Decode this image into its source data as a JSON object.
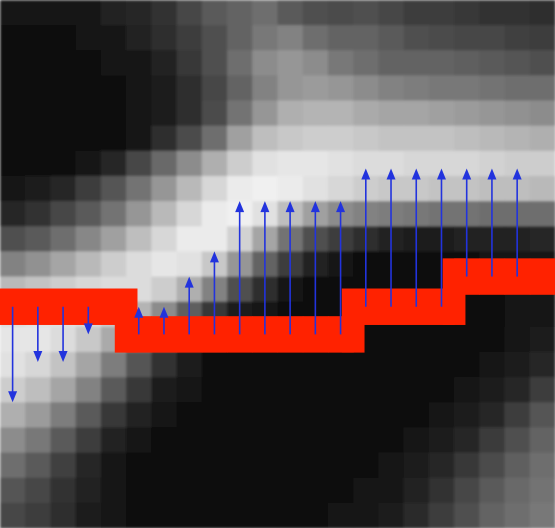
{
  "figure": {
    "description_hidden": false,
    "colors": {
      "boundary": "#ff2200",
      "arrow": "#2233dd",
      "background": "#ffffff"
    },
    "grid": {
      "cols": 22,
      "rows": 21,
      "intensities": [
        [
          20,
          20,
          20,
          25,
          35,
          40,
          50,
          70,
          90,
          100,
          110,
          90,
          80,
          75,
          80,
          70,
          60,
          60,
          55,
          50,
          50,
          45
        ],
        [
          15,
          15,
          15,
          20,
          25,
          35,
          45,
          60,
          80,
          100,
          120,
          130,
          110,
          100,
          100,
          90,
          80,
          75,
          70,
          70,
          65,
          60
        ],
        [
          10,
          10,
          10,
          15,
          20,
          25,
          35,
          55,
          80,
          110,
          140,
          150,
          140,
          120,
          110,
          100,
          100,
          100,
          95,
          90,
          85,
          80
        ],
        [
          10,
          10,
          10,
          10,
          15,
          20,
          30,
          45,
          70,
          100,
          130,
          150,
          155,
          150,
          140,
          130,
          125,
          120,
          120,
          115,
          110,
          110
        ],
        [
          8,
          8,
          8,
          10,
          15,
          20,
          30,
          45,
          75,
          115,
          150,
          175,
          180,
          180,
          170,
          165,
          165,
          160,
          155,
          150,
          145,
          140
        ],
        [
          8,
          8,
          8,
          10,
          15,
          25,
          45,
          75,
          110,
          160,
          190,
          200,
          205,
          205,
          200,
          195,
          195,
          195,
          190,
          185,
          180,
          175
        ],
        [
          10,
          10,
          15,
          25,
          40,
          70,
          105,
          140,
          175,
          205,
          225,
          230,
          230,
          225,
          220,
          220,
          215,
          215,
          215,
          210,
          205,
          205
        ],
        [
          25,
          30,
          40,
          60,
          85,
          115,
          150,
          185,
          215,
          235,
          240,
          235,
          225,
          215,
          205,
          200,
          200,
          195,
          195,
          190,
          190,
          185
        ],
        [
          40,
          50,
          70,
          90,
          115,
          150,
          185,
          215,
          235,
          240,
          225,
          190,
          160,
          140,
          130,
          125,
          120,
          115,
          115,
          110,
          110,
          110
        ],
        [
          80,
          90,
          110,
          135,
          160,
          190,
          215,
          235,
          235,
          210,
          165,
          115,
          80,
          60,
          45,
          35,
          30,
          30,
          35,
          35,
          35,
          40
        ],
        [
          130,
          145,
          165,
          185,
          205,
          220,
          230,
          225,
          200,
          150,
          100,
          60,
          35,
          20,
          12,
          10,
          10,
          12,
          15,
          18,
          20,
          25
        ],
        [
          185,
          195,
          205,
          215,
          220,
          220,
          205,
          175,
          130,
          80,
          45,
          25,
          15,
          10,
          8,
          8,
          8,
          10,
          12,
          15,
          18,
          22
        ],
        [
          220,
          225,
          225,
          220,
          205,
          180,
          140,
          95,
          55,
          30,
          18,
          12,
          10,
          8,
          8,
          8,
          8,
          10,
          12,
          15,
          18,
          22
        ],
        [
          230,
          230,
          220,
          200,
          170,
          130,
          85,
          50,
          28,
          16,
          12,
          10,
          8,
          8,
          8,
          8,
          8,
          10,
          12,
          15,
          20,
          28
        ],
        [
          225,
          215,
          195,
          165,
          125,
          85,
          50,
          28,
          16,
          12,
          10,
          8,
          8,
          8,
          8,
          8,
          10,
          12,
          15,
          20,
          28,
          40
        ],
        [
          205,
          190,
          165,
          130,
          90,
          55,
          30,
          18,
          12,
          10,
          8,
          8,
          8,
          8,
          8,
          10,
          12,
          15,
          20,
          28,
          40,
          60
        ],
        [
          175,
          155,
          125,
          90,
          55,
          32,
          18,
          12,
          10,
          8,
          8,
          8,
          8,
          8,
          10,
          12,
          15,
          20,
          28,
          40,
          60,
          85
        ],
        [
          140,
          120,
          90,
          60,
          35,
          20,
          12,
          10,
          8,
          8,
          8,
          8,
          8,
          10,
          12,
          15,
          20,
          28,
          40,
          58,
          80,
          100
        ],
        [
          110,
          90,
          65,
          40,
          22,
          14,
          10,
          8,
          8,
          8,
          8,
          8,
          10,
          12,
          15,
          20,
          28,
          38,
          55,
          75,
          95,
          110
        ],
        [
          85,
          70,
          50,
          32,
          20,
          12,
          10,
          8,
          8,
          8,
          8,
          10,
          12,
          15,
          18,
          25,
          35,
          50,
          70,
          90,
          105,
          115
        ],
        [
          70,
          60,
          45,
          30,
          18,
          12,
          10,
          8,
          8,
          8,
          10,
          12,
          15,
          18,
          22,
          30,
          42,
          60,
          80,
          100,
          110,
          120
        ]
      ]
    },
    "boundary_rows": [
      12.2,
      12.2,
      12.2,
      12.2,
      12.2,
      13.3,
      13.3,
      13.3,
      13.3,
      13.3,
      13.3,
      13.3,
      13.3,
      13.3,
      12.2,
      12.2,
      12.2,
      12.2,
      11.0,
      11.0,
      11.0,
      11.0
    ],
    "arrow_targets": [
      16.0,
      14.4,
      14.4,
      13.3,
      12.2,
      12.2,
      12.2,
      11.0,
      10.0,
      8.0,
      8.0,
      8.0,
      8.0,
      8.0,
      6.7,
      6.7,
      6.7,
      6.7,
      6.7,
      6.7,
      6.7,
      null
    ]
  }
}
